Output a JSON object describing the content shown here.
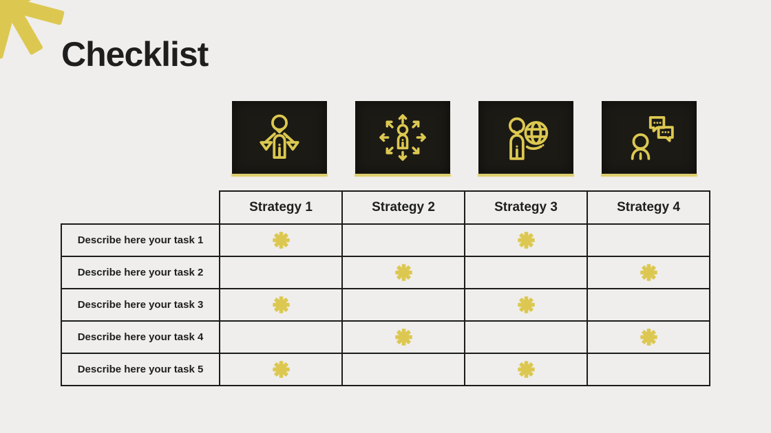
{
  "page": {
    "title": "Checklist"
  },
  "colors": {
    "background": "#efeeec",
    "accent_yellow": "#dcc851",
    "box_dark": "#1b1a15",
    "border_black": "#1b1b1b",
    "text_dark": "#1e1e1e"
  },
  "decorations": {
    "corner": "asterisk-8-spoke-yellow",
    "cell_mark": "asterisk-8-spoke-yellow"
  },
  "icons": [
    {
      "name": "person-scales-icon",
      "meaning": "person holding balance scales"
    },
    {
      "name": "person-arrows-icon",
      "meaning": "person with eight outward arrows"
    },
    {
      "name": "person-globe-icon",
      "meaning": "person with globe"
    },
    {
      "name": "person-chat-icon",
      "meaning": "person with speech bubbles"
    }
  ],
  "table": {
    "headers": [
      "Strategy 1",
      "Strategy 2",
      "Strategy 3",
      "Strategy 4"
    ],
    "rows": [
      {
        "label": "Describe here your task 1",
        "marks": [
          true,
          false,
          true,
          false
        ]
      },
      {
        "label": "Describe here your task 2",
        "marks": [
          false,
          true,
          false,
          true
        ]
      },
      {
        "label": "Describe here your task 3",
        "marks": [
          true,
          false,
          true,
          false
        ]
      },
      {
        "label": "Describe here your task 4",
        "marks": [
          false,
          true,
          false,
          true
        ]
      },
      {
        "label": "Describe here your task 5",
        "marks": [
          true,
          false,
          true,
          false
        ]
      }
    ]
  }
}
